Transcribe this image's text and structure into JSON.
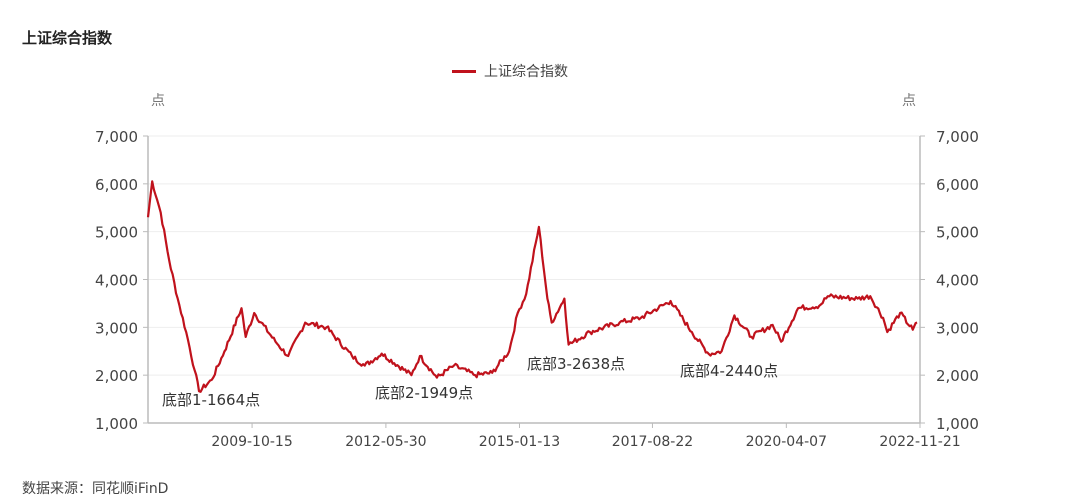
{
  "header": {
    "title": "上证综合指数"
  },
  "legend": {
    "label": "上证综合指数",
    "color": "#c0121c"
  },
  "axes": {
    "left_unit": "点",
    "right_unit": "点"
  },
  "footer": {
    "source": "数据来源：同花顺iFinD"
  },
  "chart_data": {
    "type": "line",
    "title": "上证综合指数",
    "xlabel": "",
    "ylabel": "点",
    "ylabel_right": "点",
    "ylim": [
      1000,
      7000
    ],
    "yticks": [
      "1,000",
      "2,000",
      "3,000",
      "4,000",
      "5,000",
      "6,000",
      "7,000"
    ],
    "xticks": [
      "2009-10-15",
      "2012-05-30",
      "2015-01-13",
      "2017-08-22",
      "2020-04-07",
      "2022-11-21"
    ],
    "grid": true,
    "legend_position": "top-center",
    "series": [
      {
        "name": "上证综合指数",
        "color": "#c0121c",
        "x": [
          "2007-10",
          "2007-11",
          "2008-01",
          "2008-03",
          "2008-05",
          "2008-07",
          "2008-09",
          "2008-10",
          "2009-01",
          "2009-04",
          "2009-08",
          "2009-09",
          "2009-11",
          "2010-04",
          "2010-07",
          "2010-11",
          "2011-04",
          "2011-10",
          "2012-01",
          "2012-05",
          "2012-12",
          "2013-02",
          "2013-06",
          "2013-10",
          "2014-03",
          "2014-07",
          "2014-11",
          "2015-01",
          "2015-03",
          "2015-06",
          "2015-08",
          "2015-09",
          "2015-12",
          "2016-01",
          "2016-06",
          "2017-01",
          "2017-06",
          "2018-01",
          "2018-06",
          "2018-10",
          "2019-01",
          "2019-04",
          "2019-08",
          "2020-01",
          "2020-03",
          "2020-07",
          "2020-12",
          "2021-02",
          "2021-09",
          "2021-12",
          "2022-03",
          "2022-04",
          "2022-07",
          "2022-10",
          "2022-11"
        ],
        "values": [
          5300,
          6050,
          5400,
          4400,
          3600,
          2900,
          2100,
          1664,
          1900,
          2500,
          3400,
          2800,
          3300,
          2700,
          2400,
          3100,
          3000,
          2400,
          2200,
          2450,
          2000,
          2400,
          1949,
          2200,
          2000,
          2050,
          2500,
          3300,
          3700,
          5100,
          3600,
          3100,
          3600,
          2638,
          2900,
          3100,
          3200,
          3550,
          2900,
          2440,
          2500,
          3250,
          2800,
          3050,
          2700,
          3400,
          3450,
          3650,
          3600,
          3650,
          3200,
          2900,
          3300,
          2950,
          3100
        ]
      }
    ],
    "annotations": [
      {
        "text": "底部1-1664点",
        "value": 1664
      },
      {
        "text": "底部2-1949点",
        "value": 1949
      },
      {
        "text": "底部3-2638点",
        "value": 2638
      },
      {
        "text": "底部4-2440点",
        "value": 2440
      }
    ]
  }
}
